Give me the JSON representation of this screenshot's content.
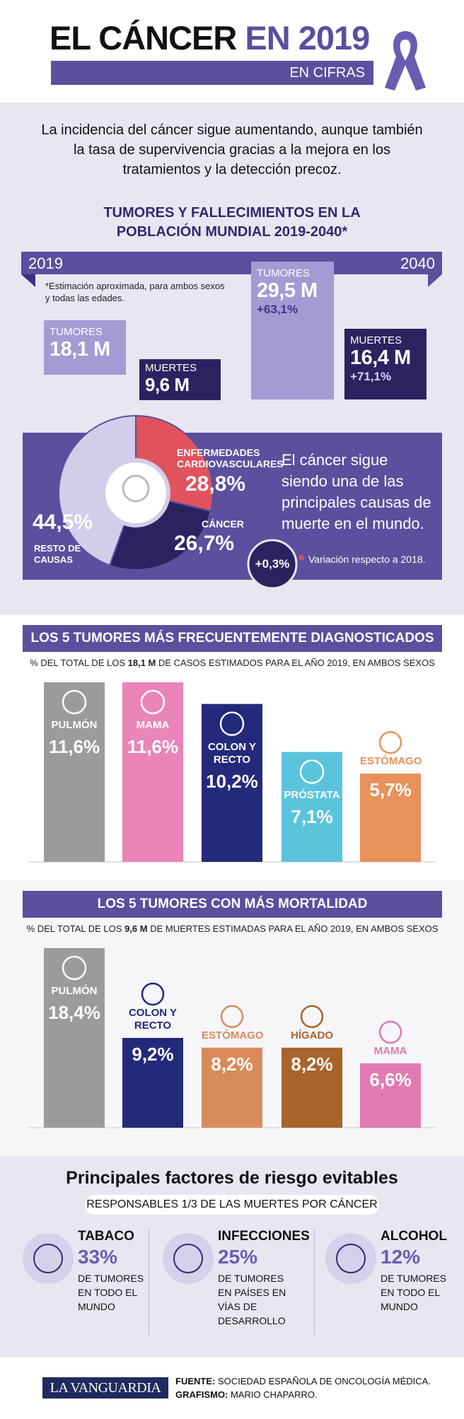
{
  "header": {
    "title_main": "EL CÁNCER",
    "title_year": "EN 2019",
    "subtitle": "EN CIFRAS"
  },
  "intro": "La incidencia del cáncer sigue aumentando, aunque también la tasa de supervivencia gracias a la mejora en los tratamientos y la detección precoz.",
  "projection": {
    "title": "TUMORES Y FALLECIMIENTOS EN LA POBLACIÓN MUNDIAL 2019-2040*",
    "year_start": "2019",
    "year_end": "2040",
    "note": "*Estimación aproximada, para ambos sexos y todas las edades.",
    "items": [
      {
        "label": "TUMORES",
        "value": "18,1 M"
      },
      {
        "label": "MUERTES",
        "value": "9,6 M"
      },
      {
        "label": "TUMORES",
        "value": "29,5 M",
        "change": "+63,1%"
      },
      {
        "label": "MUERTES",
        "value": "16,4 M",
        "change": "+71,1%"
      }
    ]
  },
  "chart_data": [
    {
      "type": "pie",
      "categories": [
        "ENFERMEDADES CARDIOVASCULARES",
        "CÁNCER",
        "RESTO DE CAUSAS"
      ],
      "values": [
        28.8,
        26.7,
        44.5
      ],
      "value_labels": [
        "28,8%",
        "26,7%",
        "44,5%"
      ],
      "colors": [
        "#e0535d",
        "#2b2360",
        "#d3cde9"
      ],
      "annotation": "El cáncer sigue siendo una de las principales causas de muerte en el mundo.",
      "change_label": "+0,3%",
      "change_note": "Variación respecto a 2018."
    },
    {
      "type": "bar",
      "title": "LOS 5 TUMORES MÁS FRECUENTEMENTE DIAGNOSTICADOS",
      "subtitle_before": "% DEL TOTAL DE LOS",
      "subtitle_bold": "18,1 M",
      "subtitle_after": "DE CASOS ESTIMADOS PARA EL AÑO 2019, EN AMBOS SEXOS",
      "categories": [
        "PULMÓN",
        "MAMA",
        "COLON Y RECTO",
        "PRÓSTATA",
        "ESTÓMAGO"
      ],
      "values": [
        11.6,
        11.6,
        10.2,
        7.1,
        5.7
      ],
      "value_labels": [
        "11,6%",
        "11,6%",
        "10,2%",
        "7,1%",
        "5,7%"
      ],
      "colors": [
        "#9b9b9b",
        "#e985b8",
        "#232a7a",
        "#5bc4dc",
        "#e8915a"
      ]
    },
    {
      "type": "bar",
      "title": "LOS 5 TUMORES CON MÁS MORTALIDAD",
      "subtitle_before": "% DEL TOTAL DE LOS",
      "subtitle_bold": "9,6 M",
      "subtitle_after": "DE MUERTES ESTIMADAS PARA EL AÑO 2019, EN AMBOS SEXOS",
      "categories": [
        "PULMÓN",
        "COLON Y RECTO",
        "ESTÓMAGO",
        "HÍGADO",
        "MAMA"
      ],
      "values": [
        18.4,
        9.2,
        8.2,
        8.2,
        6.6
      ],
      "value_labels": [
        "18,4%",
        "9,2%",
        "8,2%",
        "8,2%",
        "6,6%"
      ],
      "colors": [
        "#9b9b9b",
        "#232a7a",
        "#d98a5a",
        "#a8642a",
        "#e07ab0"
      ]
    }
  ],
  "risk_factors": {
    "title": "Principales factores de riesgo evitables",
    "subtitle": "RESPONSABLES 1/3 DE LAS MUERTES POR CÁNCER",
    "items": [
      {
        "name": "TABACO",
        "value": "33%",
        "description": "DE TUMORES EN TODO EL MUNDO"
      },
      {
        "name": "INFECCIONES",
        "value": "25%",
        "description": "DE TUMORES EN PAÍSES EN VÍAS DE DESARROLLO"
      },
      {
        "name": "ALCOHOL",
        "value": "12%",
        "description": "DE TUMORES EN TODO EL MUNDO"
      }
    ]
  },
  "footer": {
    "logo": "LA VANGUARDIA",
    "source_label": "FUENTE:",
    "source": "SOCIEDAD ESPAÑOLA DE ONCOLOGÍA MÉDICA.",
    "credit_label": "GRAFISMO:",
    "credit": "MARIO CHAPARRO."
  }
}
